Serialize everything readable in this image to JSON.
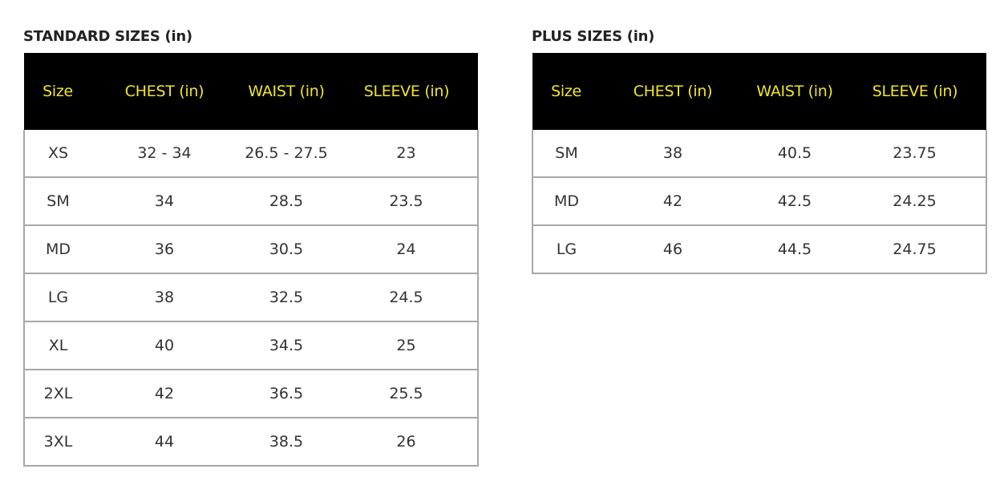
{
  "standard": {
    "title": "STANDARD SIZES (in)",
    "headers": [
      "Size",
      "CHEST (in)",
      "WAIST (in)",
      "SLEEVE (in)"
    ],
    "rows": [
      [
        "XS",
        "32 - 34",
        "26.5 - 27.5",
        "23"
      ],
      [
        "SM",
        "34",
        "28.5",
        "23.5"
      ],
      [
        "MD",
        "36",
        "30.5",
        "24"
      ],
      [
        "LG",
        "38",
        "32.5",
        "24.5"
      ],
      [
        "XL",
        "40",
        "34.5",
        "25"
      ],
      [
        "2XL",
        "42",
        "36.5",
        "25.5"
      ],
      [
        "3XL",
        "44",
        "38.5",
        "26"
      ]
    ]
  },
  "plus": {
    "title": "PLUS SIZES (in)",
    "headers": [
      "Size",
      "CHEST (in)",
      "WAIST (in)",
      "SLEEVE (in)"
    ],
    "rows": [
      [
        "SM",
        "38",
        "40.5",
        "23.75"
      ],
      [
        "MD",
        "42",
        "42.5",
        "24.25"
      ],
      [
        "LG",
        "46",
        "44.5",
        "24.75"
      ]
    ]
  },
  "colors": {
    "header_bg": "#000000",
    "header_text": "#f2e52a",
    "border": "#a8a8a8"
  }
}
